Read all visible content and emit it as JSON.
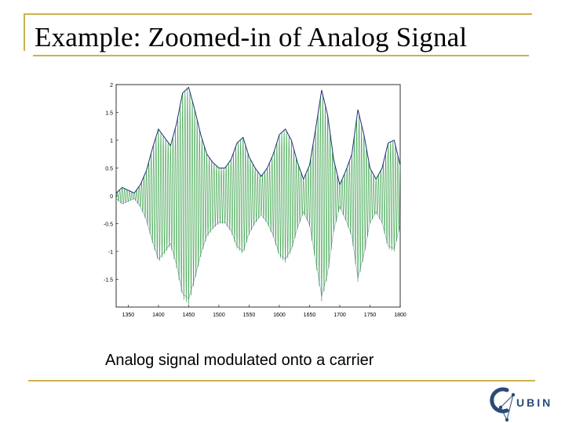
{
  "slide": {
    "title": "Example: Zoomed-in of Analog Signal",
    "caption": "Analog signal modulated onto a carrier",
    "logo_text": "UBIN"
  },
  "colors": {
    "accent_rule": "#ccb24c",
    "carrier": "#2e9c3e",
    "envelope": "#1a2f7a",
    "logo": "#2b4a78"
  },
  "chart_data": {
    "type": "line",
    "xlim": [
      1330,
      1800
    ],
    "ylim": [
      -2,
      2
    ],
    "xticks": [
      "1350",
      "1400",
      "1450",
      "1500",
      "1550",
      "1600",
      "1650",
      "1700",
      "1750",
      "1800"
    ],
    "yticks": [
      "2",
      "1.5",
      "1",
      "0.5",
      "0",
      "-0.5",
      "-1",
      "-1.5"
    ],
    "grid": false,
    "series": [
      {
        "role": "envelope",
        "x": [
          1330,
          1340,
          1350,
          1360,
          1370,
          1380,
          1390,
          1400,
          1410,
          1420,
          1430,
          1440,
          1450,
          1460,
          1470,
          1480,
          1490,
          1500,
          1510,
          1520,
          1530,
          1540,
          1550,
          1560,
          1570,
          1580,
          1590,
          1600,
          1610,
          1620,
          1630,
          1640,
          1650,
          1660,
          1670,
          1680,
          1690,
          1700,
          1710,
          1720,
          1730,
          1740,
          1750,
          1760,
          1770,
          1780,
          1790,
          1800
        ],
        "values": [
          0.05,
          0.15,
          0.1,
          0.05,
          0.2,
          0.45,
          0.85,
          1.2,
          1.05,
          0.9,
          1.3,
          1.85,
          1.95,
          1.55,
          1.1,
          0.75,
          0.6,
          0.5,
          0.5,
          0.65,
          0.95,
          1.05,
          0.7,
          0.5,
          0.35,
          0.5,
          0.75,
          1.1,
          1.2,
          1.0,
          0.6,
          0.3,
          0.55,
          1.2,
          1.9,
          1.45,
          0.65,
          0.2,
          0.45,
          0.75,
          1.55,
          1.1,
          0.5,
          0.3,
          0.5,
          0.95,
          1.0,
          0.55
        ]
      }
    ],
    "carrier_cycles_per_unit": 0.25
  }
}
